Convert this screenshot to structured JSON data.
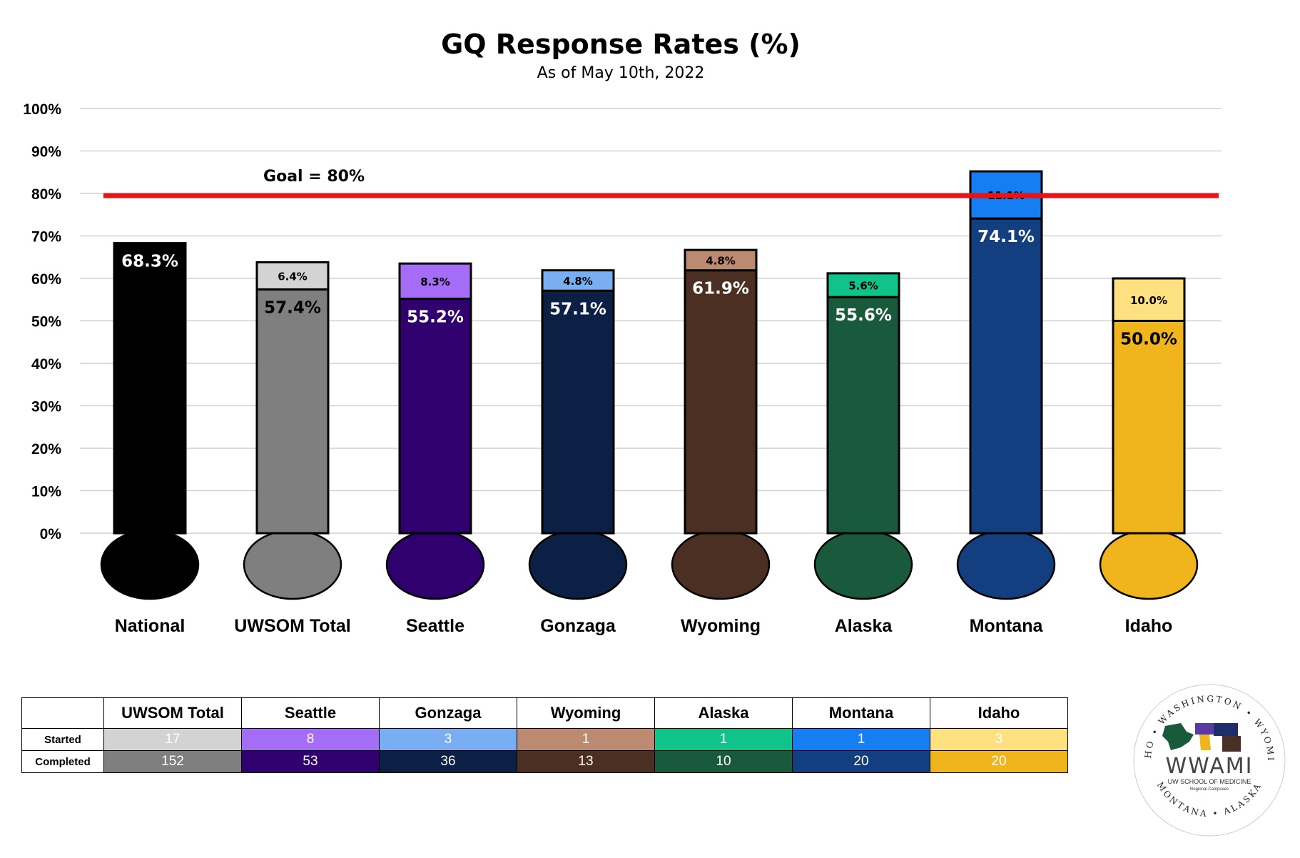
{
  "chart_data": {
    "type": "bar",
    "title": "GQ Response Rates (%)",
    "subtitle": "As of May 10th, 2022",
    "ylim": [
      0,
      100
    ],
    "yticks": [
      "0%",
      "10%",
      "20%",
      "30%",
      "40%",
      "50%",
      "60%",
      "70%",
      "80%",
      "90%",
      "100%"
    ],
    "grid": true,
    "goal": {
      "value": 80,
      "label": "Goal = 80%",
      "color": "#ee1111"
    },
    "categories": [
      "National",
      "UWSOM Total",
      "Seattle",
      "Gonzaga",
      "Wyoming",
      "Alaska",
      "Montana",
      "Idaho"
    ],
    "series": [
      {
        "values": [
          68.3,
          57.4,
          55.2,
          57.1,
          61.9,
          55.6,
          74.1,
          50.0
        ],
        "labels": [
          "68.3%",
          "57.4%",
          "55.2%",
          "57.1%",
          "61.9%",
          "55.6%",
          "74.1%",
          "50.0%"
        ]
      },
      {
        "values": [
          null,
          6.4,
          8.3,
          4.8,
          4.8,
          5.6,
          11.1,
          10.0
        ],
        "labels": [
          "",
          "6.4%",
          "8.3%",
          "4.8%",
          "4.8%",
          "5.6%",
          "11.1%",
          "10.0%"
        ]
      }
    ],
    "colors": {
      "completed": [
        "#000000",
        "#7f7f7f",
        "#31006f",
        "#0c1f45",
        "#4a2f22",
        "#1a5a3c",
        "#133f80",
        "#f0b41c"
      ],
      "started": [
        "#000000",
        "#d3d3d3",
        "#a56cf5",
        "#7aaef2",
        "#bc8a70",
        "#10c38a",
        "#157ef2",
        "#fde180"
      ],
      "label_text": [
        "#ffffff",
        "#000000",
        "#ffffff",
        "#ffffff",
        "#ffffff",
        "#ffffff",
        "#ffffff",
        "#000000"
      ]
    }
  },
  "table": {
    "columns": [
      "UWSOM Total",
      "Seattle",
      "Gonzaga",
      "Wyoming",
      "Alaska",
      "Montana",
      "Idaho"
    ],
    "rows": [
      {
        "label": "Started",
        "values": [
          "17",
          "8",
          "3",
          "1",
          "1",
          "1",
          "3"
        ]
      },
      {
        "label": "Completed",
        "values": [
          "152",
          "53",
          "36",
          "13",
          "10",
          "20",
          "20"
        ]
      }
    ]
  },
  "logo": {
    "name": "WWAMI",
    "subtitle1": "UW SCHOOL OF MEDICINE",
    "subtitle2": "Regional Campuses",
    "states": [
      "WASHINGTON",
      "WYOMING",
      "ALASKA",
      "MONTANA",
      "IDAHO"
    ]
  }
}
